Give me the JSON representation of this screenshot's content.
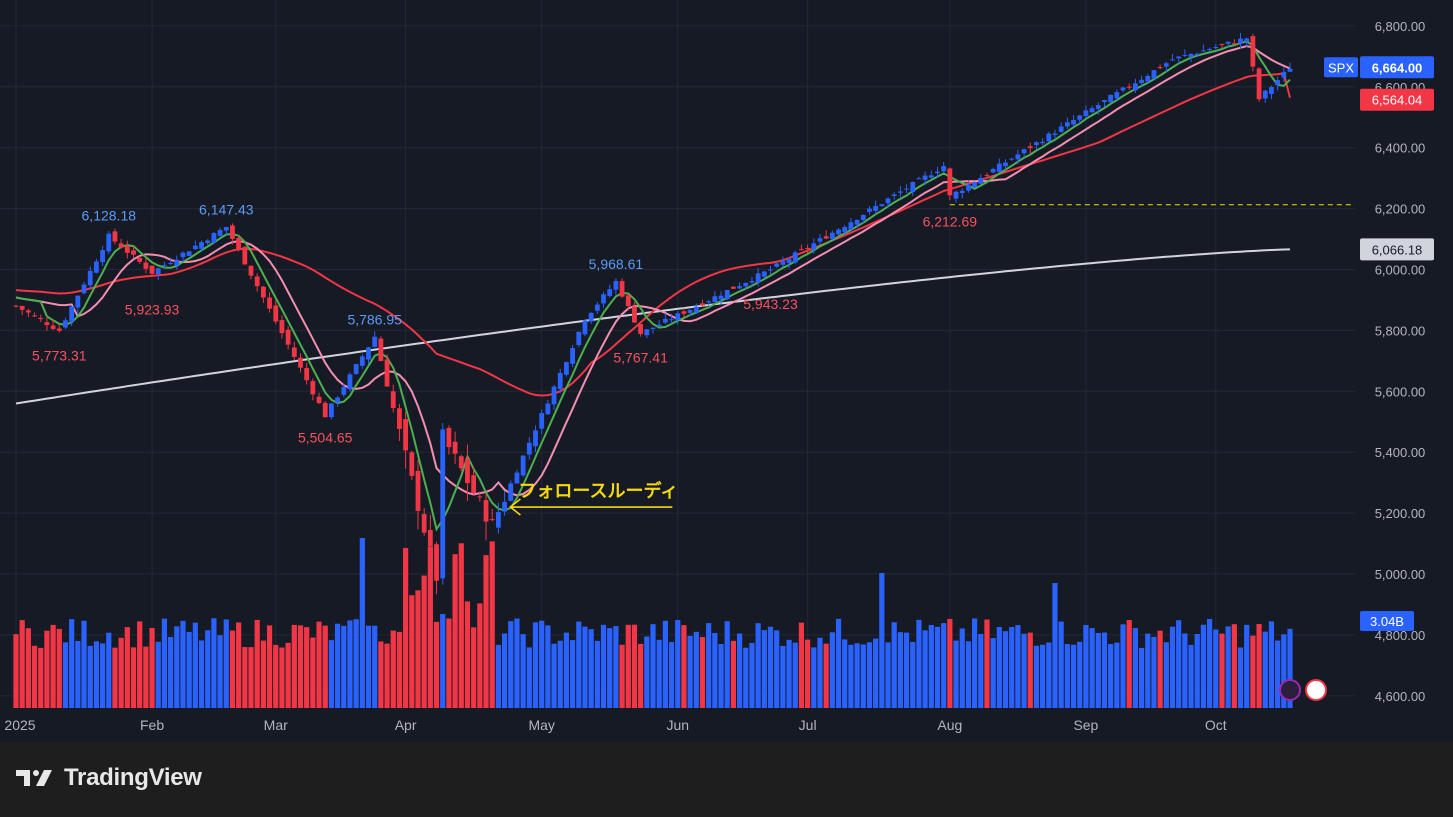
{
  "brand": {
    "name": "TradingView"
  },
  "chart_data": {
    "type": "candlestick",
    "symbol": "SPX",
    "price_axis": {
      "ticks": [
        "6,800.00",
        "6,600.00",
        "6,400.00",
        "6,200.00",
        "6,000.00",
        "5,800.00",
        "5,600.00",
        "5,400.00",
        "5,200.00",
        "5,000.00",
        "4,800.00",
        "4,600.00"
      ],
      "range": [
        4560,
        6885
      ]
    },
    "time_axis": {
      "labels": [
        "2025",
        "Feb",
        "Mar",
        "Apr",
        "May",
        "Jun",
        "Jul",
        "Aug",
        "Sep",
        "Oct"
      ]
    },
    "price_labels": {
      "last": {
        "label": "SPX",
        "value": "6,664.00",
        "color": "#2962ff"
      },
      "ma_red": {
        "value": "6,564.04",
        "color": "#f23645"
      },
      "ma_white": {
        "value": "6,066.18",
        "color": "#d1d4dc"
      },
      "volume": {
        "value": "3.04B",
        "color": "#2962ff"
      }
    },
    "horizontal_line": {
      "value": 6212.69,
      "color": "#f5d90a",
      "style": "dashed"
    },
    "annotations": [
      {
        "text": "6,128.18",
        "type": "high",
        "date": "2025-01-23",
        "value": 6128.18
      },
      {
        "text": "6,147.43",
        "type": "high",
        "date": "2025-02-19",
        "value": 6147.43
      },
      {
        "text": "5,923.93",
        "type": "low",
        "date": "2025-02-03",
        "value": 5923.93
      },
      {
        "text": "5,773.31",
        "type": "low",
        "date": "2025-01-13",
        "value": 5773.31
      },
      {
        "text": "5,786.95",
        "type": "high",
        "date": "2025-03-25",
        "value": 5786.95
      },
      {
        "text": "5,504.65",
        "type": "low",
        "date": "2025-03-13",
        "value": 5504.65
      },
      {
        "text": "5,968.61",
        "type": "high",
        "date": "2025-05-19",
        "value": 5968.61
      },
      {
        "text": "5,767.41",
        "type": "low",
        "date": "2025-05-23",
        "value": 5767.41
      },
      {
        "text": "5,943.23",
        "type": "low",
        "date": "2025-06-23",
        "value": 5943.23
      },
      {
        "text": "6,212.69",
        "type": "low",
        "date": "2025-08-01",
        "value": 6212.69
      }
    ],
    "callout": {
      "text": "フォロースルーディ",
      "color": "#f5d90a",
      "date": "2025-04-22",
      "value": 5220
    },
    "colors": {
      "up": "#2962ff",
      "down": "#f23645",
      "ma_green": "#4caf50",
      "ma_pink": "#f48fb1",
      "ma_red": "#f23645",
      "ma_white": "#d1d4dc",
      "background": "#161a25",
      "grid": "#242836"
    },
    "series": [
      {
        "name": "SPX",
        "anchor_dates": [
          "2025-01-02",
          "2025-01-13",
          "2025-01-23",
          "2025-02-03",
          "2025-02-19",
          "2025-03-13",
          "2025-03-25",
          "2025-04-08",
          "2025-04-09",
          "2025-04-21",
          "2025-05-12",
          "2025-05-19",
          "2025-05-23",
          "2025-06-23",
          "2025-07-31",
          "2025-08-01",
          "2025-09-22",
          "2025-10-08",
          "2025-10-10",
          "2025-10-17"
        ],
        "anchor_closes": [
          5880,
          5800,
          6110,
          5990,
          6140,
          5520,
          5780,
          4990,
          5450,
          5160,
          5840,
          5960,
          5790,
          6000,
          6340,
          6240,
          6690,
          6760,
          6560,
          6664
        ]
      }
    ]
  }
}
